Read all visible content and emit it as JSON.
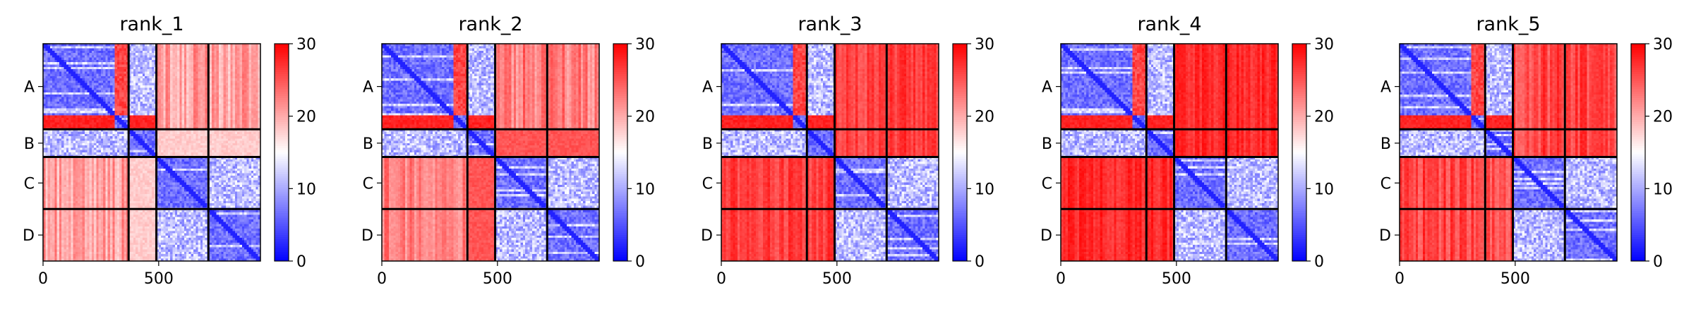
{
  "figure": {
    "background": "#ffffff"
  },
  "chart_data": [
    {
      "type": "heatmap",
      "title": "rank_1",
      "x_ticks": [
        0,
        500
      ],
      "xlim": [
        0,
        940
      ],
      "y_tick_labels": [
        "A",
        "B",
        "C",
        "D"
      ],
      "segment_boundaries": [
        0,
        370,
        490,
        715,
        940
      ],
      "diagonal_blocks": [
        [
          0,
          310
        ],
        [
          310,
          370
        ],
        [
          370,
          490
        ],
        [
          490,
          715
        ],
        [
          715,
          940
        ]
      ],
      "colorbar": {
        "min": 0,
        "max": 30,
        "ticks": [
          0,
          10,
          20,
          30
        ],
        "cmap": "bwr"
      },
      "cross_chain_level": 23,
      "cross_chain_variation": 3,
      "intra_chain_level": 4,
      "bright_columns": [
        {
          "start": 370,
          "end": 490,
          "level": 17
        }
      ],
      "off_block_rows": [
        {
          "start": 310,
          "end": 370,
          "level": 29
        }
      ],
      "grid": false
    },
    {
      "type": "heatmap",
      "title": "rank_2",
      "x_ticks": [
        0,
        500
      ],
      "xlim": [
        0,
        940
      ],
      "y_tick_labels": [
        "A",
        "B",
        "C",
        "D"
      ],
      "segment_boundaries": [
        0,
        370,
        490,
        715,
        940
      ],
      "diagonal_blocks": [
        [
          0,
          310
        ],
        [
          310,
          370
        ],
        [
          370,
          490
        ],
        [
          490,
          715
        ],
        [
          715,
          940
        ]
      ],
      "colorbar": {
        "min": 0,
        "max": 30,
        "ticks": [
          0,
          10,
          20,
          30
        ],
        "cmap": "bwr"
      },
      "cross_chain_level": 25,
      "cross_chain_variation": 3,
      "intra_chain_level": 4,
      "bright_columns": [
        {
          "start": 370,
          "end": 490,
          "level": 24
        }
      ],
      "off_block_rows": [
        {
          "start": 310,
          "end": 370,
          "level": 29
        }
      ],
      "grid": false
    },
    {
      "type": "heatmap",
      "title": "rank_3",
      "x_ticks": [
        0,
        500
      ],
      "xlim": [
        0,
        940
      ],
      "y_tick_labels": [
        "A",
        "B",
        "C",
        "D"
      ],
      "segment_boundaries": [
        0,
        370,
        490,
        715,
        940
      ],
      "diagonal_blocks": [
        [
          0,
          310
        ],
        [
          310,
          370
        ],
        [
          370,
          490
        ],
        [
          490,
          715
        ],
        [
          715,
          940
        ]
      ],
      "colorbar": {
        "min": 0,
        "max": 30,
        "ticks": [
          0,
          10,
          20,
          30
        ],
        "cmap": "bwr"
      },
      "cross_chain_level": 28,
      "cross_chain_variation": 2,
      "intra_chain_level": 4,
      "bright_columns": [],
      "off_block_rows": [
        {
          "start": 310,
          "end": 370,
          "level": 29
        }
      ],
      "grid": false
    },
    {
      "type": "heatmap",
      "title": "rank_4",
      "x_ticks": [
        0,
        500
      ],
      "xlim": [
        0,
        940
      ],
      "y_tick_labels": [
        "A",
        "B",
        "C",
        "D"
      ],
      "segment_boundaries": [
        0,
        370,
        490,
        715,
        940
      ],
      "diagonal_blocks": [
        [
          0,
          310
        ],
        [
          310,
          370
        ],
        [
          370,
          490
        ],
        [
          490,
          715
        ],
        [
          715,
          940
        ]
      ],
      "colorbar": {
        "min": 0,
        "max": 30,
        "ticks": [
          0,
          10,
          20,
          30
        ],
        "cmap": "bwr"
      },
      "cross_chain_level": 29,
      "cross_chain_variation": 1.5,
      "intra_chain_level": 4,
      "bright_columns": [],
      "off_block_rows": [
        {
          "start": 310,
          "end": 370,
          "level": 29
        }
      ],
      "grid": false
    },
    {
      "type": "heatmap",
      "title": "rank_5",
      "x_ticks": [
        0,
        500
      ],
      "xlim": [
        0,
        940
      ],
      "y_tick_labels": [
        "A",
        "B",
        "C",
        "D"
      ],
      "segment_boundaries": [
        0,
        370,
        490,
        715,
        940
      ],
      "diagonal_blocks": [
        [
          0,
          310
        ],
        [
          310,
          370
        ],
        [
          370,
          490
        ],
        [
          490,
          715
        ],
        [
          715,
          940
        ]
      ],
      "colorbar": {
        "min": 0,
        "max": 30,
        "ticks": [
          0,
          10,
          20,
          30
        ],
        "cmap": "bwr"
      },
      "cross_chain_level": 28,
      "cross_chain_variation": 2.5,
      "intra_chain_level": 4,
      "bright_columns": [],
      "off_block_rows": [
        {
          "start": 310,
          "end": 370,
          "level": 29
        }
      ],
      "grid": false
    }
  ]
}
